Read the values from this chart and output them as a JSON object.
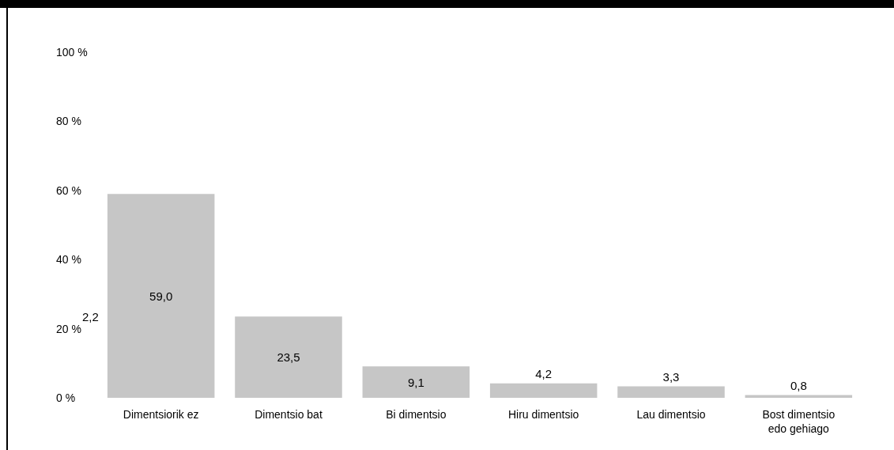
{
  "chart_data": {
    "type": "bar",
    "categories": [
      "Dimentsiorik ez",
      "Dimentsio bat",
      "Bi dimentsio",
      "Hiru dimentsio",
      "Lau dimentsio",
      "Bost dimentsio\nedo gehiago"
    ],
    "values": [
      59.0,
      23.5,
      9.1,
      4.2,
      3.3,
      0.8
    ],
    "value_labels": [
      "59,0",
      "23,5",
      "9,1",
      "4,2",
      "3,3",
      "0,8"
    ],
    "color": "#c6c6c6",
    "ylim": [
      0,
      100
    ],
    "yticks": [
      {
        "value": 0,
        "label": "0 %"
      },
      {
        "value": 20,
        "label": "20 %"
      },
      {
        "value": 40,
        "label": "40 %"
      },
      {
        "value": 60,
        "label": "60 %"
      },
      {
        "value": 80,
        "label": "80 %"
      },
      {
        "value": 100,
        "label": "100 %"
      }
    ],
    "annotations": [
      "2,2"
    ],
    "grid": false
  }
}
